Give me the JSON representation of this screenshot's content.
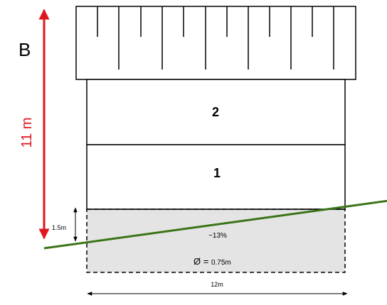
{
  "diagram": {
    "section_label": "B",
    "height_dimension": "11 m",
    "basement_dimension": "1.5m",
    "width_dimension": "12m",
    "floors": [
      {
        "label": "2"
      },
      {
        "label": "1"
      }
    ],
    "basement": {
      "slope_label": "~13%",
      "diameter_symbol": "Ø",
      "diameter_equals": " = ",
      "diameter_value": "0.75m"
    },
    "colors": {
      "height_arrow": "#e0161e",
      "ground_line": "#3a7417",
      "basement_fill": "#e4e4e4",
      "outline": "#000000",
      "dimension": "#000000"
    }
  }
}
